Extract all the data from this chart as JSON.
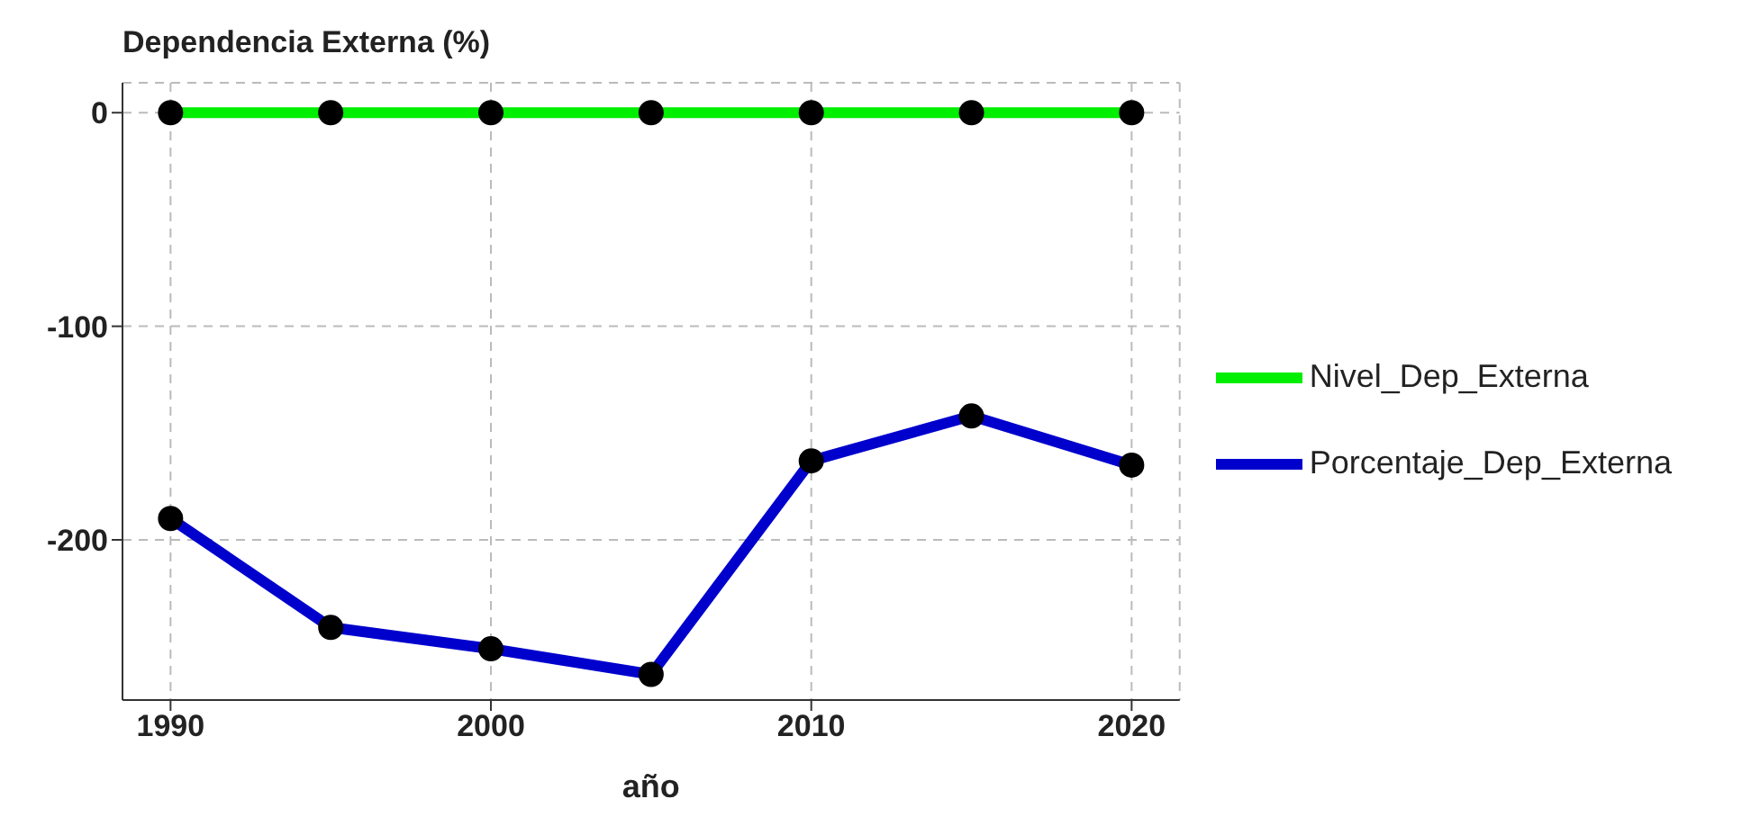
{
  "chart_data": {
    "type": "line",
    "title": "Dependencia Externa (%)",
    "xlabel": "año",
    "x": [
      1990,
      1995,
      2000,
      2005,
      2010,
      2015,
      2020
    ],
    "series": [
      {
        "name": "Porcentaje_Dep_Externa",
        "color": "#0000cd",
        "values": [
          -190,
          -241,
          -251,
          -263,
          -163,
          -142,
          -165
        ]
      },
      {
        "name": "Nivel_Dep_Externa",
        "color": "#00ee00",
        "values": [
          0,
          0,
          0,
          0,
          0,
          0,
          0
        ]
      }
    ],
    "xlim": [
      1988.5,
      2021.5
    ],
    "xticks": [
      1990,
      2000,
      2010,
      2020
    ],
    "ylim": [
      -275,
      14
    ],
    "yticks": [
      -200,
      -100,
      0
    ],
    "grid": true,
    "legend": "right",
    "marker": "circle",
    "line_style": "solid"
  }
}
